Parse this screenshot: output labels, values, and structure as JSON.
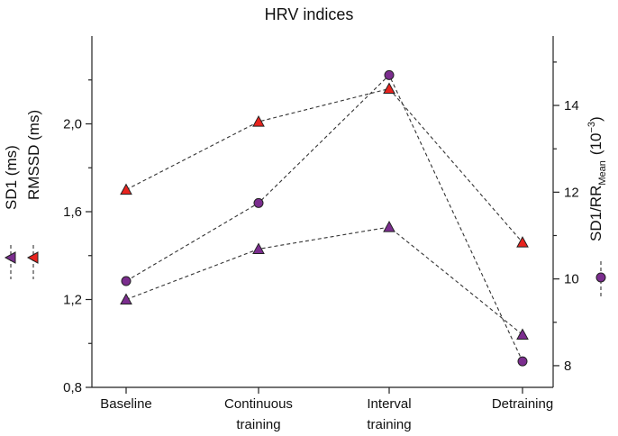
{
  "chart_data": {
    "type": "line",
    "title": "HRV indices",
    "categories": [
      "Baseline",
      "Continuous training",
      "Interval training",
      "Detraining"
    ],
    "category_lines": [
      [
        "Baseline"
      ],
      [
        "Continuous",
        "training"
      ],
      [
        "Interval",
        "training"
      ],
      [
        "Detraining"
      ]
    ],
    "xlabel": "",
    "left_axis": {
      "label": "SD1 (ms)",
      "label2": "RMSSD (ms)",
      "ylim": [
        0.8,
        2.4
      ],
      "ticks": [
        0.8,
        1.2,
        1.6,
        2.0
      ],
      "tick_labels": [
        "0,8",
        "1,2",
        "1,6",
        "2,0"
      ]
    },
    "right_axis": {
      "label_base": "SD1/RR",
      "label_sub": "Mean",
      "label_unit_prefix": "(10",
      "label_exp": "−3",
      "label_unit_suffix": ")",
      "ylim": [
        7.5,
        15.6
      ],
      "ticks": [
        8,
        10,
        12,
        14
      ],
      "tick_labels": [
        "8",
        "10",
        "12",
        "14"
      ]
    },
    "series": [
      {
        "name": "SD1 (ms)",
        "axis": "left",
        "marker": "triangle",
        "color": "#7b2d8e",
        "values": [
          1.2,
          1.43,
          1.53,
          1.04
        ]
      },
      {
        "name": "RMSSD (ms)",
        "axis": "left",
        "marker": "triangle",
        "color": "#e8231e",
        "values": [
          1.7,
          2.01,
          2.16,
          1.46
        ]
      },
      {
        "name": "SD1/RR Mean (10^-3)",
        "axis": "right",
        "marker": "circle",
        "color": "#7b2d8e",
        "values": [
          9.95,
          11.75,
          14.7,
          8.1
        ]
      }
    ]
  }
}
